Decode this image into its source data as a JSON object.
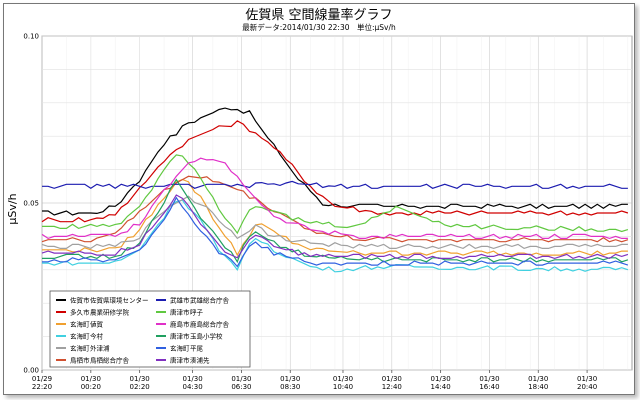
{
  "chart_data": {
    "type": "line",
    "title": "佐賀県 空間線量率グラフ",
    "subtitle": "最新データ:2014/01/30 22:30　単位:μSv/h",
    "ylabel": "μSv/h",
    "ylim": [
      0,
      0.1
    ],
    "yticks": [
      "0.00",
      "0.05",
      "0.10"
    ],
    "xticks": [
      [
        "01/29",
        "22:20"
      ],
      [
        "01/30",
        "00:20"
      ],
      [
        "01/30",
        "02:20"
      ],
      [
        "01/30",
        "04:30"
      ],
      [
        "01/30",
        "06:30"
      ],
      [
        "01/30",
        "08:30"
      ],
      [
        "01/30",
        "10:40"
      ],
      [
        "01/30",
        "12:40"
      ],
      [
        "01/30",
        "14:40"
      ],
      [
        "01/30",
        "16:40"
      ],
      [
        "01/30",
        "18:40"
      ],
      [
        "01/30",
        "20:40"
      ]
    ],
    "x_hours": [
      0,
      2,
      4,
      6.17,
      8.17,
      10.17,
      12.33,
      14.33,
      16.33,
      18.33,
      20.33,
      22.33
    ],
    "x_end_hours": 24.17,
    "grid": true,
    "legend_position": "bottom-left",
    "series": [
      {
        "city": "佐賀市",
        "site": "佐賀県環境センター",
        "color": "#000000",
        "points": [
          [
            0,
            0.047
          ],
          [
            2,
            0.047
          ],
          [
            3,
            0.049
          ],
          [
            4,
            0.057
          ],
          [
            5,
            0.068
          ],
          [
            6,
            0.074
          ],
          [
            7,
            0.077
          ],
          [
            7.5,
            0.079
          ],
          [
            8.5,
            0.077
          ],
          [
            9.5,
            0.067
          ],
          [
            10.5,
            0.057
          ],
          [
            11.5,
            0.05
          ],
          [
            13,
            0.049
          ],
          [
            16,
            0.049
          ],
          [
            20,
            0.049
          ],
          [
            24.17,
            0.049
          ]
        ]
      },
      {
        "city": "多久市",
        "site": "農業研修学院",
        "color": "#d00000",
        "points": [
          [
            0,
            0.045
          ],
          [
            2,
            0.045
          ],
          [
            3,
            0.047
          ],
          [
            4,
            0.054
          ],
          [
            5,
            0.063
          ],
          [
            6,
            0.069
          ],
          [
            7,
            0.072
          ],
          [
            8,
            0.074
          ],
          [
            9,
            0.07
          ],
          [
            10,
            0.063
          ],
          [
            11,
            0.055
          ],
          [
            12,
            0.049
          ],
          [
            14,
            0.047
          ],
          [
            18,
            0.047
          ],
          [
            24.17,
            0.047
          ]
        ]
      },
      {
        "city": "玄海町",
        "site": "値賀",
        "color": "#f0a030",
        "points": [
          [
            0,
            0.036
          ],
          [
            3,
            0.036
          ],
          [
            4,
            0.042
          ],
          [
            5,
            0.052
          ],
          [
            5.7,
            0.058
          ],
          [
            6.5,
            0.052
          ],
          [
            7.3,
            0.042
          ],
          [
            8,
            0.035
          ],
          [
            8.8,
            0.044
          ],
          [
            9.5,
            0.041
          ],
          [
            11,
            0.036
          ],
          [
            13,
            0.035
          ],
          [
            24.17,
            0.035
          ]
        ]
      },
      {
        "city": "玄海町",
        "site": "今村",
        "color": "#40d0e0",
        "points": [
          [
            0,
            0.032
          ],
          [
            3,
            0.032
          ],
          [
            4,
            0.036
          ],
          [
            5,
            0.046
          ],
          [
            5.6,
            0.052
          ],
          [
            6.5,
            0.045
          ],
          [
            7.3,
            0.035
          ],
          [
            8,
            0.03
          ],
          [
            8.6,
            0.04
          ],
          [
            9.5,
            0.036
          ],
          [
            11,
            0.031
          ],
          [
            12,
            0.03
          ],
          [
            14,
            0.031
          ],
          [
            24.17,
            0.03
          ]
        ]
      },
      {
        "city": "玄海町",
        "site": "外津浦",
        "color": "#a0a0a0",
        "points": [
          [
            0,
            0.037
          ],
          [
            3,
            0.037
          ],
          [
            4,
            0.04
          ],
          [
            5,
            0.048
          ],
          [
            6,
            0.052
          ],
          [
            7,
            0.047
          ],
          [
            8,
            0.04
          ],
          [
            8.7,
            0.043
          ],
          [
            9.5,
            0.04
          ],
          [
            11,
            0.038
          ],
          [
            13,
            0.037
          ],
          [
            24.17,
            0.037
          ]
        ]
      },
      {
        "city": "鳥栖市",
        "site": "鳥栖総合庁舎",
        "color": "#d05030",
        "points": [
          [
            0,
            0.039
          ],
          [
            2,
            0.039
          ],
          [
            3,
            0.041
          ],
          [
            4,
            0.047
          ],
          [
            5,
            0.054
          ],
          [
            6,
            0.058
          ],
          [
            7,
            0.057
          ],
          [
            8,
            0.054
          ],
          [
            9,
            0.05
          ],
          [
            10,
            0.046
          ],
          [
            11,
            0.042
          ],
          [
            12,
            0.04
          ],
          [
            14,
            0.039
          ],
          [
            24.17,
            0.039
          ]
        ]
      },
      {
        "city": "武雄市",
        "site": "武雄総合庁舎",
        "color": "#1c1cb0",
        "points": [
          [
            0,
            0.055
          ],
          [
            2,
            0.055
          ],
          [
            3,
            0.055
          ],
          [
            4,
            0.055
          ],
          [
            5,
            0.055
          ],
          [
            6,
            0.055
          ],
          [
            7,
            0.055
          ],
          [
            8,
            0.055
          ],
          [
            10,
            0.056
          ],
          [
            12,
            0.055
          ],
          [
            14,
            0.055
          ],
          [
            16,
            0.055
          ],
          [
            18,
            0.055
          ],
          [
            20,
            0.055
          ],
          [
            22,
            0.055
          ],
          [
            24.17,
            0.055
          ]
        ]
      },
      {
        "city": "唐津市",
        "site": "呼子",
        "color": "#60c840",
        "points": [
          [
            0,
            0.043
          ],
          [
            3,
            0.043
          ],
          [
            4,
            0.049
          ],
          [
            5,
            0.06
          ],
          [
            5.6,
            0.066
          ],
          [
            6.5,
            0.058
          ],
          [
            7.3,
            0.048
          ],
          [
            8,
            0.041
          ],
          [
            8.6,
            0.05
          ],
          [
            9.5,
            0.047
          ],
          [
            11,
            0.044
          ],
          [
            13,
            0.043
          ],
          [
            14.5,
            0.049
          ],
          [
            15.5,
            0.046
          ],
          [
            17,
            0.043
          ],
          [
            24.17,
            0.042
          ]
        ]
      },
      {
        "city": "鹿島市",
        "site": "鹿島総合庁舎",
        "color": "#e030c8",
        "points": [
          [
            0,
            0.04
          ],
          [
            3,
            0.04
          ],
          [
            4,
            0.044
          ],
          [
            5,
            0.054
          ],
          [
            6,
            0.062
          ],
          [
            6.5,
            0.064
          ],
          [
            7.5,
            0.062
          ],
          [
            8.5,
            0.054
          ],
          [
            9.5,
            0.046
          ],
          [
            11,
            0.042
          ],
          [
            13,
            0.04
          ],
          [
            24.17,
            0.04
          ]
        ]
      },
      {
        "city": "唐津市",
        "site": "玉島小学校",
        "color": "#20a060",
        "points": [
          [
            0,
            0.034
          ],
          [
            3,
            0.034
          ],
          [
            4,
            0.038
          ],
          [
            5,
            0.05
          ],
          [
            5.5,
            0.057
          ],
          [
            6.3,
            0.048
          ],
          [
            7.3,
            0.038
          ],
          [
            8,
            0.033
          ],
          [
            8.6,
            0.042
          ],
          [
            9.5,
            0.038
          ],
          [
            11,
            0.034
          ],
          [
            13,
            0.033
          ],
          [
            24.17,
            0.033
          ]
        ]
      },
      {
        "city": "玄海町",
        "site": "平尾",
        "color": "#3060e0",
        "points": [
          [
            0,
            0.033
          ],
          [
            3,
            0.033
          ],
          [
            4,
            0.036
          ],
          [
            5,
            0.045
          ],
          [
            5.5,
            0.051
          ],
          [
            6.3,
            0.044
          ],
          [
            7.3,
            0.035
          ],
          [
            8,
            0.031
          ],
          [
            8.6,
            0.039
          ],
          [
            9.5,
            0.035
          ],
          [
            11,
            0.032
          ],
          [
            13,
            0.032
          ],
          [
            24.17,
            0.032
          ]
        ]
      },
      {
        "city": "唐津市",
        "site": "湊浦先",
        "color": "#8030c0",
        "points": [
          [
            0,
            0.035
          ],
          [
            3,
            0.035
          ],
          [
            4,
            0.038
          ],
          [
            5,
            0.047
          ],
          [
            5.5,
            0.053
          ],
          [
            6.3,
            0.046
          ],
          [
            7.3,
            0.037
          ],
          [
            8,
            0.033
          ],
          [
            8.6,
            0.041
          ],
          [
            9.5,
            0.037
          ],
          [
            11,
            0.034
          ],
          [
            13,
            0.034
          ],
          [
            24.17,
            0.034
          ]
        ]
      }
    ]
  }
}
